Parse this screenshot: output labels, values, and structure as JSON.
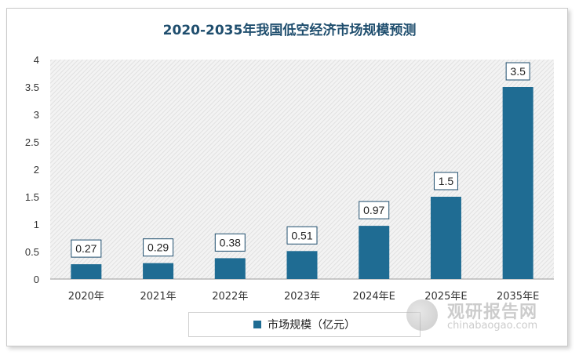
{
  "chart_data": {
    "type": "bar",
    "title": "2020-2035年我国低空经济市场规模预测",
    "categories": [
      "2020年",
      "2021年",
      "2022年",
      "2023年",
      "2024年E",
      "2025年E",
      "2035年E"
    ],
    "series": [
      {
        "name": "市场规模（亿元）",
        "values": [
          0.27,
          0.29,
          0.38,
          0.51,
          0.97,
          1.5,
          3.5
        ],
        "labels": [
          "0.27",
          "0.29",
          "0.38",
          "0.51",
          "0.97",
          "1.5",
          "3.5"
        ]
      }
    ],
    "ylim": [
      0,
      4
    ],
    "yticks": [
      "0",
      "0.5",
      "1",
      "1.5",
      "2",
      "2.5",
      "3",
      "3.5",
      "4"
    ],
    "ytick_values": [
      0,
      0.5,
      1,
      1.5,
      2,
      2.5,
      3,
      3.5,
      4
    ],
    "legend_position": "bottom",
    "bar_color": "#1f6c93"
  },
  "watermark": {
    "text_cn": "观研报告网",
    "text_en": "chinabaogao.com"
  }
}
